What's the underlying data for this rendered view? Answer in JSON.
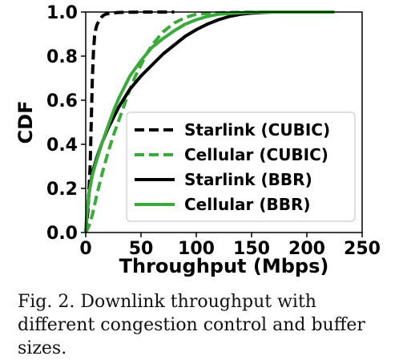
{
  "chart_data": {
    "type": "line",
    "subtype": "cdf",
    "xlabel": "Throughput (Mbps)",
    "ylabel": "CDF",
    "xlim": [
      0,
      250
    ],
    "ylim": [
      0,
      1.0
    ],
    "xticks": [
      0,
      50,
      100,
      150,
      200,
      250
    ],
    "yticks": [
      0.0,
      0.2,
      0.4,
      0.6,
      0.8,
      1.0
    ],
    "xtick_labels": [
      "0",
      "50",
      "100",
      "150",
      "200",
      "250"
    ],
    "ytick_labels": [
      "0.0",
      "0.2",
      "0.4",
      "0.6",
      "0.8",
      "1.0"
    ],
    "legend_position": "lower-right",
    "grid": false,
    "series": [
      {
        "name": "Starlink (CUBIC)",
        "color": "#000000",
        "style": "dashed",
        "x": [
          0,
          2,
          4,
          5,
          6,
          7,
          8,
          9,
          10,
          11,
          12,
          14,
          16,
          18,
          22,
          30,
          50,
          80
        ],
        "y": [
          0,
          0.1,
          0.3,
          0.5,
          0.7,
          0.82,
          0.89,
          0.92,
          0.94,
          0.95,
          0.96,
          0.975,
          0.985,
          0.99,
          0.995,
          0.998,
          1.0,
          1.0
        ]
      },
      {
        "name": "Cellular (CUBIC)",
        "color": "#3aab3a",
        "style": "dashed",
        "x": [
          0,
          3,
          6,
          10,
          15,
          20,
          25,
          30,
          35,
          40,
          45,
          50,
          55,
          60,
          65,
          70,
          80,
          90,
          100,
          120,
          150,
          180
        ],
        "y": [
          0,
          0.03,
          0.08,
          0.17,
          0.27,
          0.36,
          0.44,
          0.51,
          0.58,
          0.65,
          0.71,
          0.76,
          0.81,
          0.85,
          0.88,
          0.91,
          0.95,
          0.975,
          0.99,
          0.997,
          1.0,
          1.0
        ]
      },
      {
        "name": "Starlink (BBR)",
        "color": "#000000",
        "style": "solid",
        "x": [
          0,
          1,
          3,
          6,
          10,
          15,
          20,
          25,
          30,
          40,
          50,
          60,
          70,
          80,
          90,
          100,
          110,
          120,
          130,
          140,
          150,
          160,
          170,
          180
        ],
        "y": [
          0,
          0.07,
          0.18,
          0.27,
          0.34,
          0.41,
          0.47,
          0.52,
          0.57,
          0.65,
          0.71,
          0.76,
          0.81,
          0.85,
          0.89,
          0.92,
          0.945,
          0.965,
          0.98,
          0.99,
          0.995,
          0.998,
          1.0,
          1.0
        ]
      },
      {
        "name": "Cellular (BBR)",
        "color": "#3aab3a",
        "style": "solid",
        "x": [
          0,
          1,
          3,
          6,
          10,
          15,
          20,
          25,
          30,
          40,
          50,
          60,
          70,
          80,
          90,
          100,
          110,
          120,
          140,
          160,
          180,
          200,
          225
        ],
        "y": [
          0,
          0.08,
          0.18,
          0.26,
          0.33,
          0.41,
          0.48,
          0.55,
          0.61,
          0.71,
          0.78,
          0.84,
          0.88,
          0.915,
          0.945,
          0.965,
          0.98,
          0.99,
          0.997,
          1.0,
          1.0,
          1.0,
          1.0
        ]
      }
    ]
  },
  "caption": {
    "text": "Fig. 2.  Downlink throughput with different congestion control and buffer sizes."
  }
}
